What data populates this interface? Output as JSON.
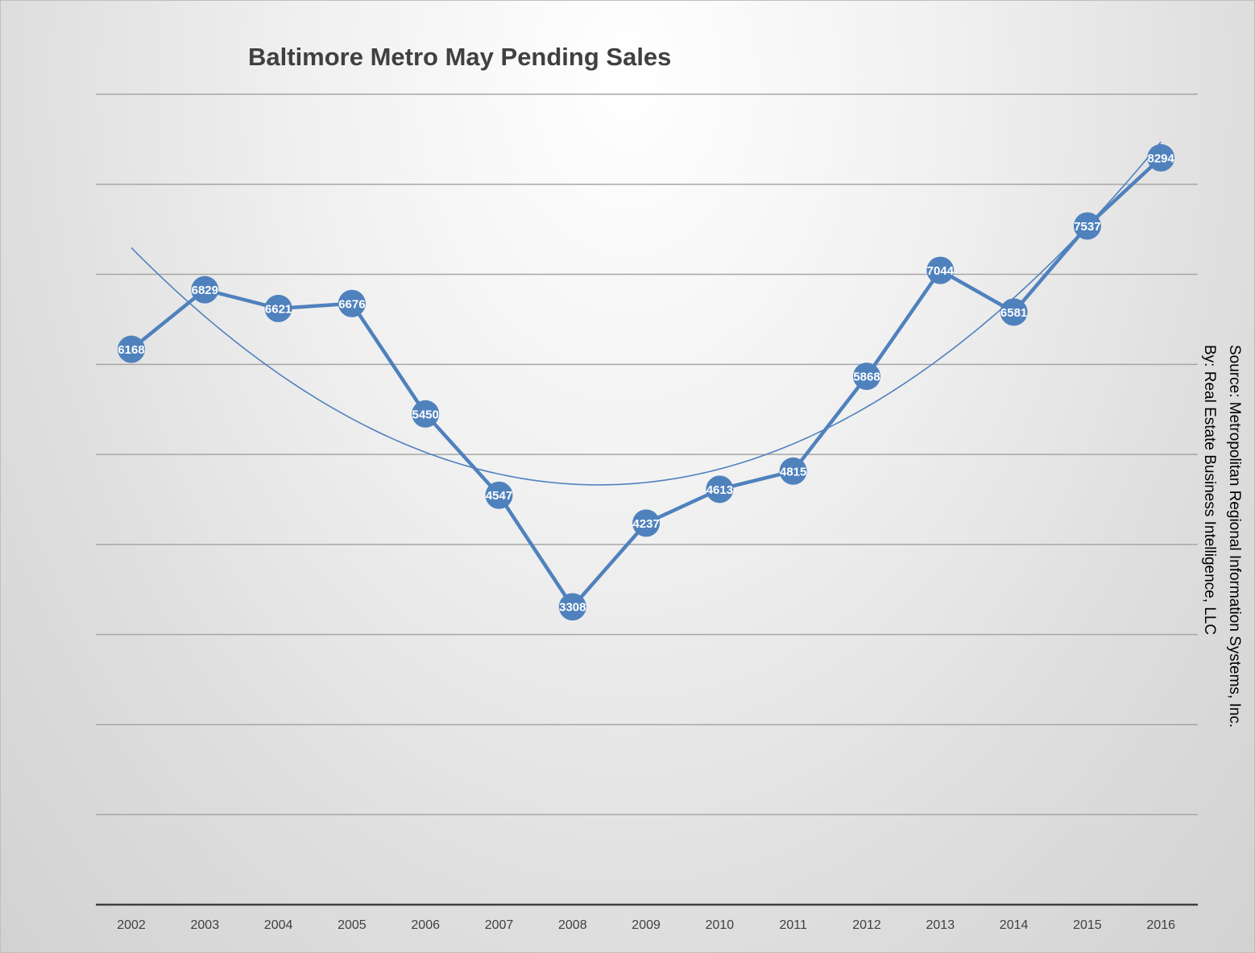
{
  "chart_data": {
    "type": "line",
    "title": "Baltimore Metro May Pending Sales",
    "categories": [
      "2002",
      "2003",
      "2004",
      "2005",
      "2006",
      "2007",
      "2008",
      "2009",
      "2010",
      "2011",
      "2012",
      "2013",
      "2014",
      "2015",
      "2016"
    ],
    "series": [
      {
        "values": [
          6168,
          6829,
          6621,
          6676,
          5450,
          4547,
          3308,
          4237,
          4613,
          4815,
          5868,
          7044,
          6581,
          7537,
          8294
        ]
      }
    ],
    "data_labels": [
      "6168",
      "6829",
      "6621",
      "6676",
      "5450",
      "4547",
      "3308",
      "4237",
      "4613",
      "4815",
      "5868",
      "7044",
      "6581",
      "7537",
      "8294"
    ],
    "trendline": {
      "type": "polynomial",
      "order": 2
    },
    "ylim": [
      0,
      9000
    ],
    "y_gridline_step": 1000,
    "y_tick_labels_shown": false,
    "grid": true,
    "legend": "none",
    "annotation": {
      "line1": "Source:  Metropolitan Regional Information Systems, Inc.",
      "line2": "By: Real Estate Business Intelligence, LLC"
    },
    "colors": {
      "series": "#4f81bd",
      "marker": "#4f81bd",
      "trendline": "#4f81bd",
      "gridline": "#a6a6a6",
      "axis": "#404040",
      "data_label": "#ffffff"
    }
  }
}
